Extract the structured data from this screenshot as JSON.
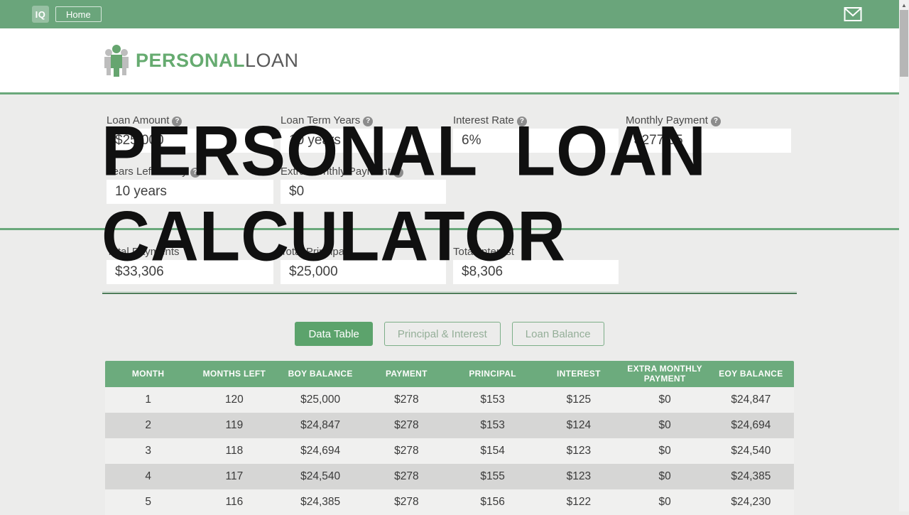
{
  "topbar": {
    "logo_text": "IQ",
    "home_label": "Home"
  },
  "brand": {
    "name_primary": "PERSONAL",
    "name_secondary": "LOAN"
  },
  "overlay_title": {
    "line1": "PERSONAL LOAN",
    "line2": "CALCULATOR"
  },
  "inputs": [
    {
      "label": "Loan Amount",
      "value": "$25,000"
    },
    {
      "label": "Loan Term Years",
      "value": "10 years"
    },
    {
      "label": "Interest Rate",
      "value": "6%"
    },
    {
      "label": "Monthly Payment",
      "value": "$277.55"
    },
    {
      "label": "Years Left to Pay",
      "value": "10 years"
    },
    {
      "label": "Extra Monthly Payment",
      "value": "$0"
    }
  ],
  "totals": [
    {
      "label": "Total Payments",
      "value": "$33,306"
    },
    {
      "label": "Total Principal",
      "value": "$25,000"
    },
    {
      "label": "Total Interest",
      "value": "$8,306"
    }
  ],
  "tabs": [
    {
      "label": "Data Table",
      "active": true
    },
    {
      "label": "Principal & Interest",
      "active": false
    },
    {
      "label": "Loan Balance",
      "active": false
    }
  ],
  "table": {
    "columns": [
      "MONTH",
      "MONTHS LEFT",
      "BOY BALANCE",
      "PAYMENT",
      "PRINCIPAL",
      "INTEREST",
      "EXTRA MONTHLY PAYMENT",
      "EOY BALANCE"
    ],
    "rows": [
      [
        "1",
        "120",
        "$25,000",
        "$278",
        "$153",
        "$125",
        "$0",
        "$24,847"
      ],
      [
        "2",
        "119",
        "$24,847",
        "$278",
        "$153",
        "$124",
        "$0",
        "$24,694"
      ],
      [
        "3",
        "118",
        "$24,694",
        "$278",
        "$154",
        "$123",
        "$0",
        "$24,540"
      ],
      [
        "4",
        "117",
        "$24,540",
        "$278",
        "$155",
        "$123",
        "$0",
        "$24,385"
      ],
      [
        "5",
        "116",
        "$24,385",
        "$278",
        "$156",
        "$122",
        "$0",
        "$24,230"
      ]
    ]
  },
  "icons": {
    "mail": "envelope-icon",
    "help": "question-circle-icon",
    "brand": "person-icon",
    "scroll_up": "scroll-up-arrow-icon"
  },
  "colors": {
    "topbar_green": "#6aa57b",
    "brand_green": "#66ab70",
    "divider_green": "#6aa87b",
    "active_tab_green": "#5ca36c",
    "table_header_green": "#6cab7d",
    "row_alt_gray": "#d6d6d5",
    "page_bg": "#ececeb",
    "overlay_text": "#101010"
  }
}
